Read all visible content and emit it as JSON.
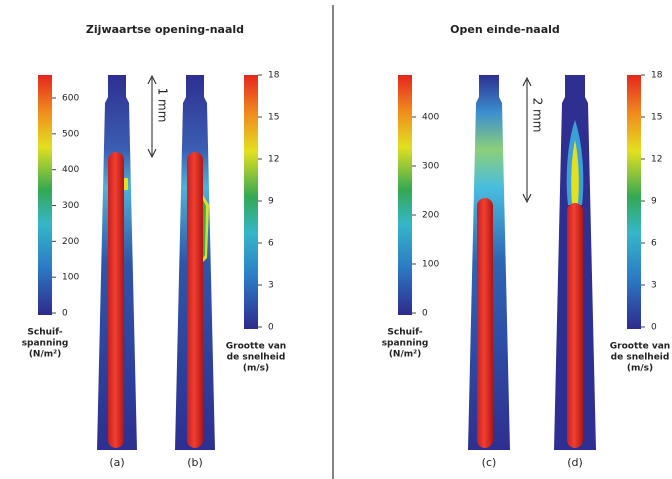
{
  "left": {
    "title": "Zijwaartse opening-naald",
    "shear_bar": {
      "ticks": [
        0,
        100,
        200,
        300,
        400,
        500,
        600
      ],
      "label": [
        "Schuif-",
        "spanning",
        "(N/m²)"
      ]
    },
    "velocity_bar": {
      "ticks": [
        0,
        3,
        6,
        9,
        12,
        15,
        18
      ],
      "label": [
        "Grootte van",
        "de snelheid",
        "(m/s)"
      ]
    },
    "scale": "1 mm",
    "panels": [
      "(a)",
      "(b)"
    ]
  },
  "right": {
    "title": "Open einde-naald",
    "shear_bar": {
      "ticks": [
        0,
        100,
        200,
        300,
        400
      ],
      "label": [
        "Schuif-",
        "spanning",
        "(N/m²)"
      ]
    },
    "velocity_bar": {
      "ticks": [
        0,
        3,
        6,
        9,
        12,
        15,
        18
      ],
      "label": [
        "Grootte van",
        "de snelheid",
        "(m/s)"
      ]
    },
    "scale": "2 mm",
    "panels": [
      "(c)",
      "(d)"
    ]
  }
}
